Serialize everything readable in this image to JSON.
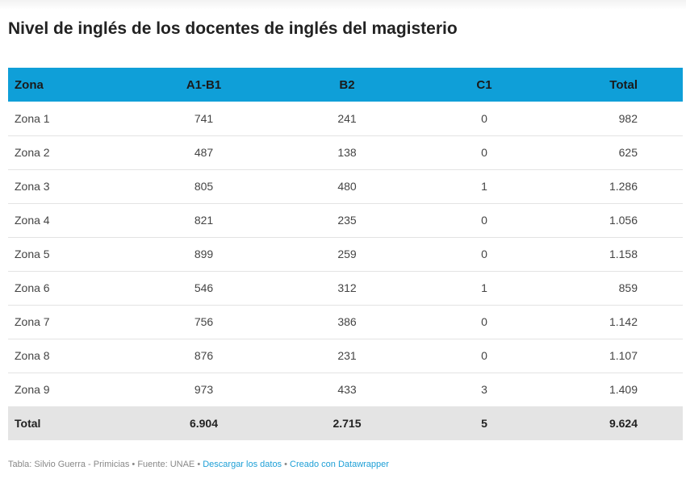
{
  "title": "Nivel de inglés de los docentes de inglés del magisterio",
  "chart_data": {
    "type": "table",
    "title": "Nivel de inglés de los docentes de inglés del magisterio",
    "columns": [
      "Zona",
      "A1-B1",
      "B2",
      "C1",
      "Total"
    ],
    "rows": [
      [
        "Zona 1",
        "741",
        "241",
        "0",
        "982"
      ],
      [
        "Zona 2",
        "487",
        "138",
        "0",
        "625"
      ],
      [
        "Zona 3",
        "805",
        "480",
        "1",
        "1.286"
      ],
      [
        "Zona 4",
        "821",
        "235",
        "0",
        "1.056"
      ],
      [
        "Zona 5",
        "899",
        "259",
        "0",
        "1.158"
      ],
      [
        "Zona 6",
        "546",
        "312",
        "1",
        "859"
      ],
      [
        "Zona 7",
        "756",
        "386",
        "0",
        "1.142"
      ],
      [
        "Zona 8",
        "876",
        "231",
        "0",
        "1.107"
      ],
      [
        "Zona 9",
        "973",
        "433",
        "3",
        "1.409"
      ]
    ],
    "totals": [
      "Total",
      "6.904",
      "2.715",
      "5",
      "9.624"
    ]
  },
  "footer": {
    "credit": "Tabla: Silvio Guerra - Primicias • Fuente: UNAE • ",
    "download_label": "Descargar los datos",
    "separator": " • ",
    "created_label": "Creado con Datawrapper"
  },
  "colors": {
    "header_bg": "#0f9fd8",
    "totals_bg": "#e4e4e4",
    "link": "#1d9fd6"
  }
}
